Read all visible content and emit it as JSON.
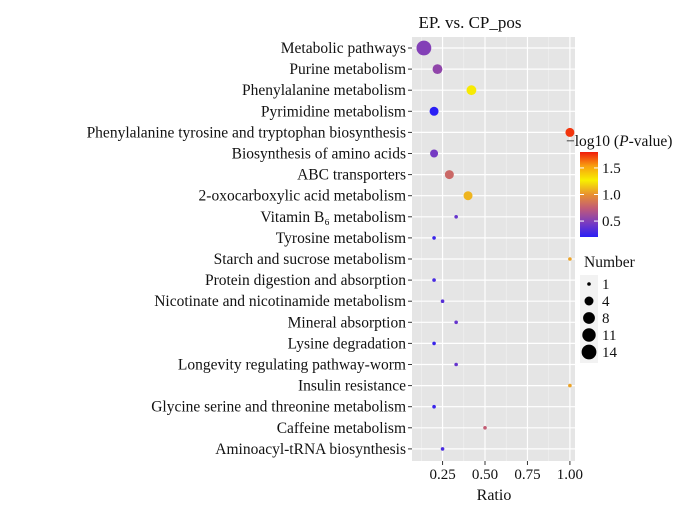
{
  "chart_data": {
    "type": "scatter",
    "title": "EP. vs. CP_pos",
    "xlabel": "Ratio",
    "ylabel": "",
    "xlim": [
      0.07,
      1.03
    ],
    "xticks": [
      0.25,
      0.5,
      0.75,
      1.0
    ],
    "xtick_labels": [
      "0.25",
      "0.50",
      "0.75",
      "1.00"
    ],
    "grid": true,
    "categories": [
      "Metabolic pathways",
      "Purine metabolism",
      "Phenylalanine metabolism",
      "Pyrimidine metabolism",
      "Phenylalanine tyrosine and tryptophan biosynthesis",
      "Biosynthesis of amino acids",
      "ABC transporters",
      "2-oxocarboxylic acid metabolism",
      "Vitamin B₆ metabolism",
      "Tyrosine metabolism",
      "Starch and sucrose metabolism",
      "Protein digestion and absorption",
      "Nicotinate and nicotinamide metabolism",
      "Mineral absorption",
      "Lysine degradation",
      "Longevity regulating pathway-worm",
      "Insulin resistance",
      "Glycine serine and threonine metabolism",
      "Caffeine metabolism",
      "Aminoacyl-tRNA biosynthesis"
    ],
    "points": [
      {
        "ratio": 0.14,
        "number": 14,
        "neglog10p": 0.5
      },
      {
        "ratio": 0.22,
        "number": 5,
        "neglog10p": 0.55
      },
      {
        "ratio": 0.42,
        "number": 5,
        "neglog10p": 1.25
      },
      {
        "ratio": 0.2,
        "number": 4,
        "neglog10p": 0.2
      },
      {
        "ratio": 1.0,
        "number": 4,
        "neglog10p": 1.75
      },
      {
        "ratio": 0.2,
        "number": 3,
        "neglog10p": 0.45
      },
      {
        "ratio": 0.29,
        "number": 4,
        "neglog10p": 0.8
      },
      {
        "ratio": 0.4,
        "number": 4,
        "neglog10p": 1.1
      },
      {
        "ratio": 0.33,
        "number": 1,
        "neglog10p": 0.4
      },
      {
        "ratio": 0.2,
        "number": 1,
        "neglog10p": 0.25
      },
      {
        "ratio": 1.0,
        "number": 1,
        "neglog10p": 1.05
      },
      {
        "ratio": 0.2,
        "number": 1,
        "neglog10p": 0.3
      },
      {
        "ratio": 0.25,
        "number": 1,
        "neglog10p": 0.35
      },
      {
        "ratio": 0.33,
        "number": 1,
        "neglog10p": 0.4
      },
      {
        "ratio": 0.2,
        "number": 1,
        "neglog10p": 0.25
      },
      {
        "ratio": 0.33,
        "number": 1,
        "neglog10p": 0.4
      },
      {
        "ratio": 1.0,
        "number": 1,
        "neglog10p": 1.05
      },
      {
        "ratio": 0.2,
        "number": 1,
        "neglog10p": 0.25
      },
      {
        "ratio": 0.5,
        "number": 1,
        "neglog10p": 0.75
      },
      {
        "ratio": 0.25,
        "number": 1,
        "neglog10p": 0.3
      }
    ],
    "color_legend": {
      "title_prefix": "−log10 (",
      "title_italic": "P",
      "title_suffix": "-value)",
      "range": [
        0.2,
        1.8
      ],
      "ticks": [
        1.5,
        1.0,
        0.5
      ],
      "tick_labels": [
        "1.5",
        "1.0",
        "0.5"
      ],
      "gradient_colors": [
        "#2a1ff5",
        "#7a3cc0",
        "#c05a78",
        "#e89030",
        "#f8f000",
        "#f8a010",
        "#f01c0c"
      ],
      "placement": "right"
    },
    "size_legend": {
      "title": "Number",
      "values": [
        1,
        4,
        8,
        11,
        14
      ],
      "labels": [
        "1",
        "4",
        "8",
        "11",
        "14"
      ],
      "placement": "right"
    }
  }
}
